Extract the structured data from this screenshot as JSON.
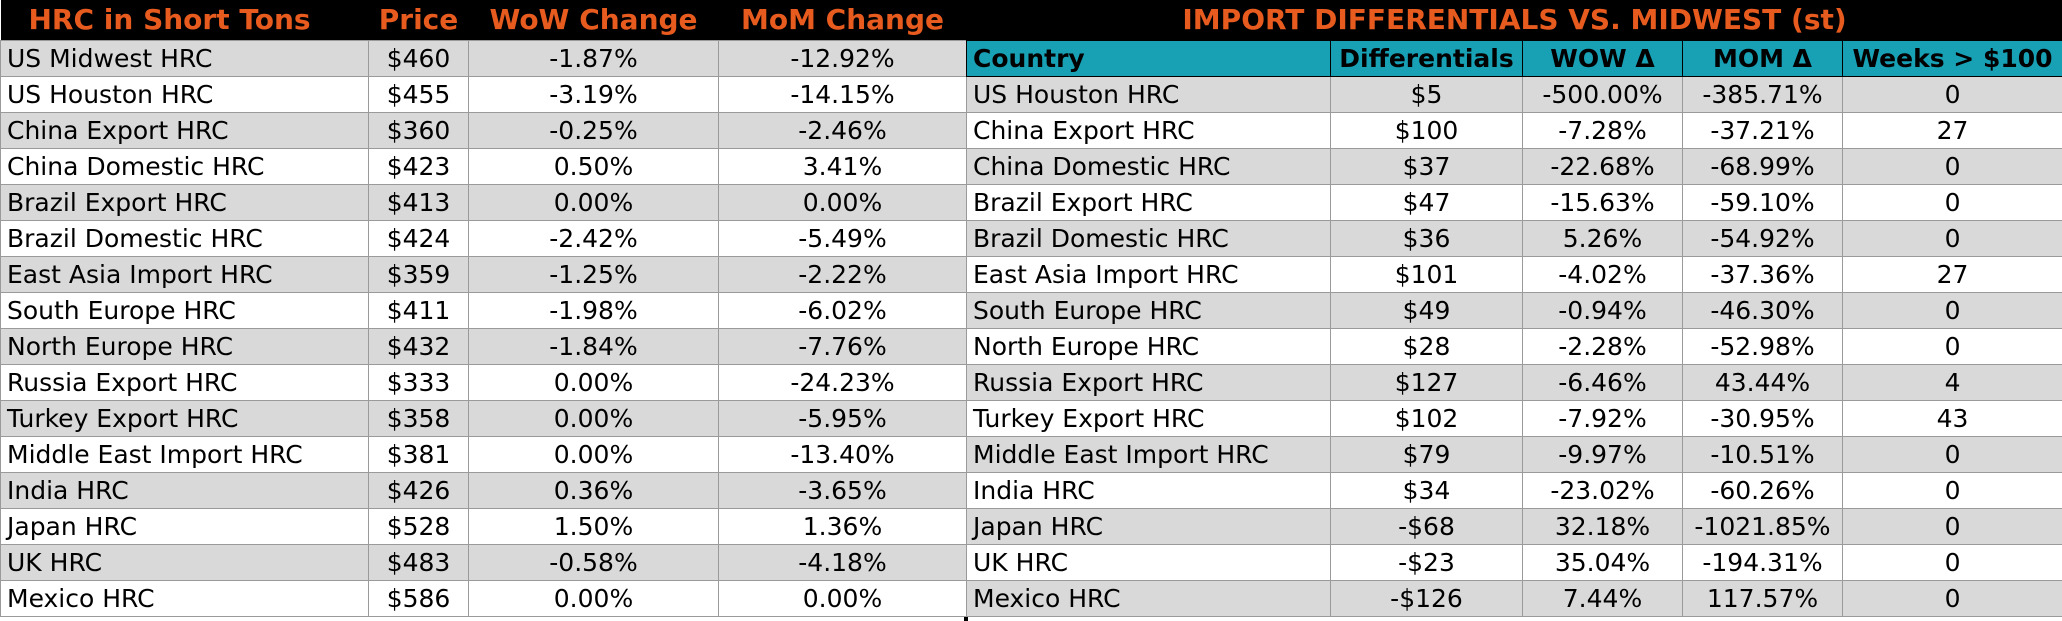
{
  "left_table": {
    "headers": [
      "HRC in Short Tons",
      "Price",
      "WoW Change",
      "MoM Change"
    ],
    "rows": [
      [
        "US Midwest HRC",
        "$460",
        "-1.87%",
        "-12.92%"
      ],
      [
        "US Houston HRC",
        "$455",
        "-3.19%",
        "-14.15%"
      ],
      [
        "China Export HRC",
        "$360",
        "-0.25%",
        "-2.46%"
      ],
      [
        "China Domestic HRC",
        "$423",
        "0.50%",
        "3.41%"
      ],
      [
        "Brazil Export HRC",
        "$413",
        "0.00%",
        "0.00%"
      ],
      [
        "Brazil Domestic HRC",
        "$424",
        "-2.42%",
        "-5.49%"
      ],
      [
        "East Asia Import HRC",
        "$359",
        "-1.25%",
        "-2.22%"
      ],
      [
        "South Europe HRC",
        "$411",
        "-1.98%",
        "-6.02%"
      ],
      [
        "North Europe HRC",
        "$432",
        "-1.84%",
        "-7.76%"
      ],
      [
        "Russia Export HRC",
        "$333",
        "0.00%",
        "-24.23%"
      ],
      [
        "Turkey Export HRC",
        "$358",
        "0.00%",
        "-5.95%"
      ],
      [
        "Middle East Import HRC",
        "$381",
        "0.00%",
        "-13.40%"
      ],
      [
        "India HRC",
        "$426",
        "0.36%",
        "-3.65%"
      ],
      [
        "Japan HRC",
        "$528",
        "1.50%",
        "1.36%"
      ],
      [
        "UK HRC",
        "$483",
        "-0.58%",
        "-4.18%"
      ],
      [
        "Mexico HRC",
        "$586",
        "0.00%",
        "0.00%"
      ]
    ]
  },
  "right_table": {
    "title": "IMPORT DIFFERENTIALS VS. MIDWEST (st)",
    "headers": [
      "Country",
      "Differentials",
      "WOW Δ",
      "MOM Δ",
      "Weeks > $100"
    ],
    "rows": [
      [
        "US Houston HRC",
        "$5",
        "-500.00%",
        "-385.71%",
        "0"
      ],
      [
        "China Export HRC",
        "$100",
        "-7.28%",
        "-37.21%",
        "27"
      ],
      [
        "China Domestic HRC",
        "$37",
        "-22.68%",
        "-68.99%",
        "0"
      ],
      [
        "Brazil Export HRC",
        "$47",
        "-15.63%",
        "-59.10%",
        "0"
      ],
      [
        "Brazil Domestic HRC",
        "$36",
        "5.26%",
        "-54.92%",
        "0"
      ],
      [
        "East Asia Import HRC",
        "$101",
        "-4.02%",
        "-37.36%",
        "27"
      ],
      [
        "South Europe HRC",
        "$49",
        "-0.94%",
        "-46.30%",
        "0"
      ],
      [
        "North Europe HRC",
        "$28",
        "-2.28%",
        "-52.98%",
        "0"
      ],
      [
        "Russia Export HRC",
        "$127",
        "-6.46%",
        "43.44%",
        "4"
      ],
      [
        "Turkey Export HRC",
        "$102",
        "-7.92%",
        "-30.95%",
        "43"
      ],
      [
        "Middle East Import HRC",
        "$79",
        "-9.97%",
        "-10.51%",
        "0"
      ],
      [
        "India HRC",
        "$34",
        "-23.02%",
        "-60.26%",
        "0"
      ],
      [
        "Japan HRC",
        "-$68",
        "32.18%",
        "-1021.85%",
        "0"
      ],
      [
        "UK HRC",
        "-$23",
        "35.04%",
        "-194.31%",
        "0"
      ],
      [
        "Mexico HRC",
        "-$126",
        "7.44%",
        "117.57%",
        "0"
      ]
    ]
  },
  "colors": {
    "title_text": "#e85b1f",
    "title_bg": "#000000",
    "header_bg": "#18a0b5",
    "stripe": "#d9d9d9"
  }
}
